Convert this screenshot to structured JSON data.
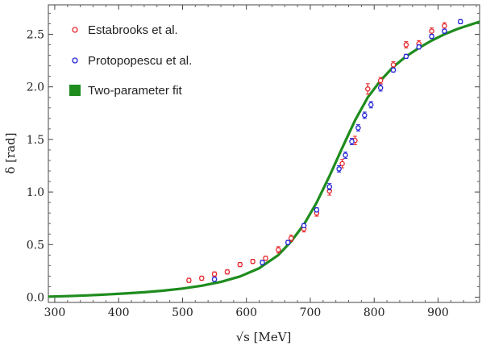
{
  "chart_data": {
    "type": "scatter",
    "xlabel": "√s [MeV]",
    "ylabel": "δ [rad]",
    "xlim": [
      290,
      965
    ],
    "ylim": [
      -0.05,
      2.78
    ],
    "xticks": [
      300,
      400,
      500,
      600,
      700,
      800,
      900
    ],
    "yticks": [
      0.0,
      0.5,
      1.0,
      1.5,
      2.0,
      2.5
    ],
    "xtick_labels": [
      "300",
      "400",
      "500",
      "600",
      "700",
      "800",
      "900"
    ],
    "ytick_labels": [
      "0.0",
      "0.5",
      "1.0",
      "1.5",
      "2.0",
      "2.5"
    ],
    "legend_position": "top-left",
    "series": [
      {
        "name": "Estabrooks et al.",
        "marker": "open-circle",
        "color": "#e8262a",
        "x": [
          510,
          530,
          550,
          570,
          590,
          610,
          630,
          650,
          670,
          690,
          710,
          730,
          750,
          770,
          790,
          810,
          830,
          850,
          870,
          890,
          910
        ],
        "y": [
          0.16,
          0.18,
          0.22,
          0.24,
          0.31,
          0.34,
          0.37,
          0.45,
          0.56,
          0.65,
          0.8,
          1.01,
          1.27,
          1.49,
          1.98,
          2.06,
          2.21,
          2.4,
          2.41,
          2.53,
          2.58
        ],
        "err": [
          0.02,
          0.02,
          0.02,
          0.02,
          0.02,
          0.02,
          0.02,
          0.03,
          0.03,
          0.03,
          0.03,
          0.04,
          0.04,
          0.04,
          0.05,
          0.03,
          0.03,
          0.03,
          0.03,
          0.03,
          0.03
        ]
      },
      {
        "name": "Protopopescu et al.",
        "marker": "open-circle",
        "color": "#2323d6",
        "x": [
          550,
          625,
          665,
          690,
          710,
          730,
          745,
          755,
          765,
          775,
          785,
          795,
          810,
          830,
          850,
          870,
          890,
          910,
          935
        ],
        "y": [
          0.17,
          0.33,
          0.52,
          0.68,
          0.83,
          1.05,
          1.22,
          1.35,
          1.48,
          1.61,
          1.73,
          1.83,
          1.99,
          2.16,
          2.29,
          2.38,
          2.48,
          2.53,
          2.62
        ],
        "err": [
          0.02,
          0.02,
          0.02,
          0.02,
          0.02,
          0.03,
          0.03,
          0.03,
          0.03,
          0.03,
          0.03,
          0.03,
          0.03,
          0.02,
          0.02,
          0.02,
          0.02,
          0.02,
          0.02
        ]
      },
      {
        "name": "Two-parameter fit",
        "marker": "line",
        "color": "#1e8c1e",
        "x": [
          290,
          320,
          350,
          380,
          410,
          440,
          470,
          500,
          530,
          560,
          590,
          620,
          650,
          670,
          690,
          710,
          730,
          750,
          770,
          790,
          810,
          830,
          850,
          870,
          890,
          910,
          930,
          965
        ],
        "y": [
          0.005,
          0.01,
          0.017,
          0.025,
          0.035,
          0.047,
          0.062,
          0.082,
          0.109,
          0.145,
          0.197,
          0.275,
          0.4,
          0.53,
          0.69,
          0.9,
          1.15,
          1.42,
          1.68,
          1.9,
          2.06,
          2.19,
          2.29,
          2.37,
          2.44,
          2.5,
          2.55,
          2.62
        ]
      }
    ]
  }
}
